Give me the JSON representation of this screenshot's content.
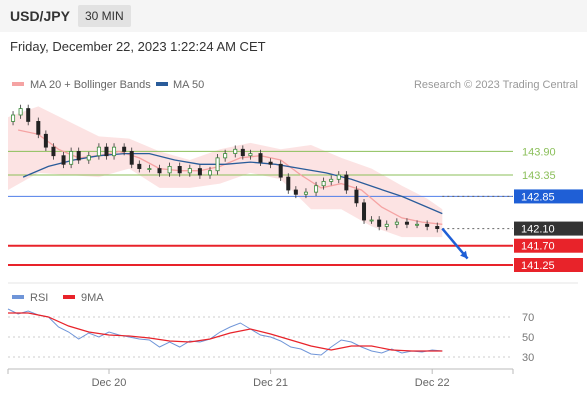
{
  "header": {
    "symbol": "USD/JPY",
    "timeframe": "30 MIN"
  },
  "datetime": "Friday, December 22, 2023 1:22:24 AM CET",
  "colors": {
    "ma20": "#f5a3a3",
    "ma50": "#2a5c9a",
    "band": "#fbdcdc",
    "support": "#e8232a",
    "resistance": "#8bbf5a",
    "pivot": "#4f7ee8",
    "current": "#333333",
    "rsi": "#6f95d8",
    "rsi_ma": "#e8232a"
  },
  "chart_data": [
    {
      "type": "candlestick",
      "legend": [
        {
          "name": "MA 20 + Bollinger Bands",
          "color": "#f5a3a3"
        },
        {
          "name": "MA 50",
          "color": "#2a5c9a"
        }
      ],
      "credit": "Research © 2023 Trading Central",
      "ylim": [
        140.9,
        145.1
      ],
      "xlim": [
        0,
        100
      ],
      "xticks": [
        {
          "x": 20,
          "label": "Dec 20"
        },
        {
          "x": 52,
          "label": "Dec 21"
        },
        {
          "x": 84,
          "label": "Dec 22"
        }
      ],
      "levels": [
        {
          "value": 143.9,
          "label": "143.90",
          "kind": "resistance"
        },
        {
          "value": 143.35,
          "label": "143.35",
          "kind": "resistance"
        },
        {
          "value": 142.85,
          "label": "142.85",
          "kind": "pivot"
        },
        {
          "value": 142.1,
          "label": "142.10",
          "kind": "current"
        },
        {
          "value": 141.7,
          "label": "141.70",
          "kind": "support"
        },
        {
          "value": 141.25,
          "label": "141.25",
          "kind": "support"
        }
      ],
      "price": [
        [
          0,
          144.6
        ],
        [
          2,
          144.75
        ],
        [
          3,
          144.9
        ],
        [
          5,
          144.6
        ],
        [
          7,
          144.3
        ],
        [
          8,
          144.0
        ],
        [
          10,
          143.8
        ],
        [
          12,
          143.6
        ],
        [
          13,
          143.9
        ],
        [
          15,
          143.7
        ],
        [
          17,
          143.8
        ],
        [
          19,
          144.0
        ],
        [
          20,
          143.8
        ],
        [
          22,
          144.0
        ],
        [
          24,
          143.9
        ],
        [
          25,
          143.6
        ],
        [
          27,
          143.5
        ],
        [
          29,
          143.5
        ],
        [
          31,
          143.4
        ],
        [
          33,
          143.55
        ],
        [
          35,
          143.4
        ],
        [
          37,
          143.5
        ],
        [
          39,
          143.35
        ],
        [
          41,
          143.45
        ],
        [
          42,
          143.75
        ],
        [
          44,
          143.85
        ],
        [
          46,
          143.95
        ],
        [
          47,
          143.8
        ],
        [
          49,
          143.85
        ],
        [
          51,
          143.65
        ],
        [
          53,
          143.6
        ],
        [
          55,
          143.3
        ],
        [
          56,
          143.0
        ],
        [
          58,
          142.9
        ],
        [
          60,
          142.95
        ],
        [
          62,
          143.1
        ],
        [
          63,
          143.2
        ],
        [
          65,
          143.25
        ],
        [
          66,
          143.35
        ],
        [
          68,
          143.0
        ],
        [
          70,
          142.7
        ],
        [
          71,
          142.3
        ],
        [
          73,
          142.3
        ],
        [
          74,
          142.15
        ],
        [
          76,
          142.2
        ],
        [
          78,
          142.25
        ],
        [
          80,
          142.2
        ],
        [
          82,
          142.2
        ],
        [
          84,
          142.15
        ],
        [
          86,
          142.1
        ]
      ],
      "ma20": [
        [
          2,
          144.4
        ],
        [
          6,
          144.3
        ],
        [
          10,
          143.95
        ],
        [
          14,
          143.75
        ],
        [
          18,
          143.8
        ],
        [
          22,
          143.9
        ],
        [
          26,
          143.75
        ],
        [
          30,
          143.5
        ],
        [
          34,
          143.45
        ],
        [
          38,
          143.45
        ],
        [
          42,
          143.55
        ],
        [
          46,
          143.75
        ],
        [
          50,
          143.8
        ],
        [
          54,
          143.7
        ],
        [
          58,
          143.35
        ],
        [
          62,
          143.05
        ],
        [
          66,
          143.15
        ],
        [
          70,
          143.0
        ],
        [
          74,
          142.6
        ],
        [
          78,
          142.35
        ],
        [
          82,
          142.25
        ],
        [
          86,
          142.2
        ]
      ],
      "ma50": [
        [
          3,
          143.3
        ],
        [
          8,
          143.55
        ],
        [
          13,
          143.7
        ],
        [
          18,
          143.8
        ],
        [
          23,
          143.85
        ],
        [
          28,
          143.85
        ],
        [
          33,
          143.7
        ],
        [
          38,
          143.6
        ],
        [
          43,
          143.6
        ],
        [
          48,
          143.65
        ],
        [
          53,
          143.6
        ],
        [
          58,
          143.5
        ],
        [
          63,
          143.4
        ],
        [
          68,
          143.25
        ],
        [
          73,
          143.05
        ],
        [
          78,
          142.85
        ],
        [
          83,
          142.6
        ],
        [
          86,
          142.45
        ]
      ],
      "bb_upper": [
        [
          0,
          144.7
        ],
        [
          6,
          144.95
        ],
        [
          12,
          144.6
        ],
        [
          18,
          144.25
        ],
        [
          24,
          144.2
        ],
        [
          30,
          143.9
        ],
        [
          36,
          143.7
        ],
        [
          42,
          143.95
        ],
        [
          48,
          144.1
        ],
        [
          54,
          143.95
        ],
        [
          60,
          144.05
        ],
        [
          66,
          143.75
        ],
        [
          72,
          143.5
        ],
        [
          78,
          143.1
        ],
        [
          83,
          142.8
        ],
        [
          86,
          142.55
        ]
      ],
      "bb_lower": [
        [
          0,
          143.0
        ],
        [
          6,
          143.4
        ],
        [
          12,
          143.35
        ],
        [
          18,
          143.3
        ],
        [
          24,
          143.5
        ],
        [
          30,
          143.05
        ],
        [
          36,
          143.05
        ],
        [
          42,
          143.15
        ],
        [
          48,
          143.4
        ],
        [
          54,
          143.25
        ],
        [
          60,
          142.55
        ],
        [
          66,
          142.55
        ],
        [
          72,
          142.15
        ],
        [
          78,
          141.9
        ],
        [
          83,
          141.9
        ],
        [
          86,
          141.9
        ]
      ],
      "arrow_from": [
        86,
        142.1
      ],
      "arrow_to": [
        91,
        141.4
      ]
    },
    {
      "type": "line",
      "legend": [
        {
          "name": "RSI",
          "color": "#6f95d8"
        },
        {
          "name": "9MA",
          "color": "#e8232a"
        }
      ],
      "ylim": [
        22,
        82
      ],
      "yticks": [
        70,
        50,
        30
      ],
      "rsi": [
        [
          0,
          78
        ],
        [
          2,
          73
        ],
        [
          4,
          76
        ],
        [
          6,
          72
        ],
        [
          8,
          70
        ],
        [
          10,
          60
        ],
        [
          12,
          55
        ],
        [
          14,
          48
        ],
        [
          16,
          54
        ],
        [
          18,
          50
        ],
        [
          20,
          55
        ],
        [
          22,
          52
        ],
        [
          24,
          50
        ],
        [
          26,
          48
        ],
        [
          28,
          47
        ],
        [
          30,
          40
        ],
        [
          32,
          45
        ],
        [
          34,
          40
        ],
        [
          36,
          46
        ],
        [
          38,
          45
        ],
        [
          40,
          48
        ],
        [
          42,
          55
        ],
        [
          44,
          60
        ],
        [
          46,
          64
        ],
        [
          48,
          58
        ],
        [
          50,
          52
        ],
        [
          52,
          50
        ],
        [
          54,
          46
        ],
        [
          56,
          40
        ],
        [
          58,
          38
        ],
        [
          60,
          33
        ],
        [
          62,
          32
        ],
        [
          64,
          40
        ],
        [
          66,
          47
        ],
        [
          68,
          45
        ],
        [
          70,
          40
        ],
        [
          72,
          36
        ],
        [
          74,
          34
        ],
        [
          76,
          38
        ],
        [
          78,
          34
        ],
        [
          80,
          36
        ],
        [
          82,
          35
        ],
        [
          84,
          37
        ],
        [
          86,
          36
        ]
      ],
      "rsi_ma": [
        [
          0,
          74
        ],
        [
          4,
          74
        ],
        [
          8,
          70
        ],
        [
          12,
          61
        ],
        [
          16,
          55
        ],
        [
          20,
          52
        ],
        [
          24,
          51
        ],
        [
          28,
          49
        ],
        [
          32,
          46
        ],
        [
          36,
          45
        ],
        [
          40,
          48
        ],
        [
          44,
          54
        ],
        [
          48,
          58
        ],
        [
          52,
          53
        ],
        [
          56,
          47
        ],
        [
          60,
          41
        ],
        [
          64,
          37
        ],
        [
          68,
          41
        ],
        [
          72,
          41
        ],
        [
          76,
          37
        ],
        [
          80,
          36
        ],
        [
          84,
          36
        ],
        [
          86,
          36
        ]
      ]
    }
  ]
}
